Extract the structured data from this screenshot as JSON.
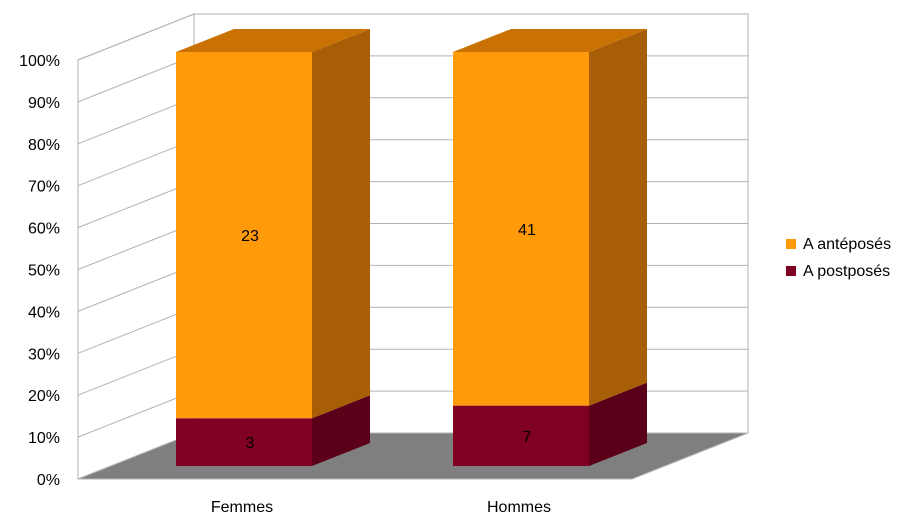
{
  "chart_data": {
    "type": "bar",
    "stacked": true,
    "percent_stacked": true,
    "three_d": true,
    "categories": [
      "Femmes",
      "Hommes"
    ],
    "series": [
      {
        "name": "A postposés",
        "values": [
          3,
          7
        ],
        "color": "#7f0022",
        "side_color": "#5a0018"
      },
      {
        "name": "A antéposés",
        "values": [
          23,
          41
        ],
        "color": "#ff9a0a",
        "side_color": "#a85e05",
        "top_color": "#c97203"
      }
    ],
    "y_ticks": [
      "0%",
      "10%",
      "20%",
      "30%",
      "40%",
      "50%",
      "60%",
      "70%",
      "80%",
      "90%",
      "100%"
    ],
    "ylim": [
      0,
      100
    ],
    "grid": true,
    "legend": "right",
    "legend_order": [
      "A antéposés",
      "A postposés"
    ],
    "floor_color": "#7f7f7f"
  }
}
